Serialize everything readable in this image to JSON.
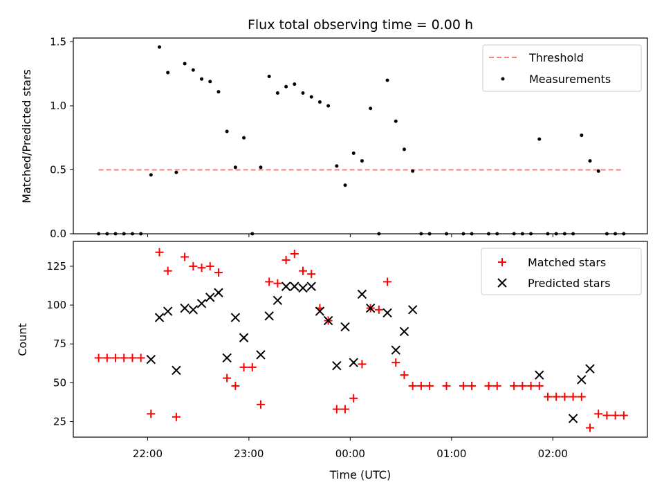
{
  "chart_data": [
    {
      "type": "scatter",
      "title": "Flux total observing time = 0.00 h",
      "xlabel": "",
      "ylabel": "Matched/Predicted stars",
      "xlim": [
        "21:16",
        "02:56"
      ],
      "ylim": [
        0,
        1.53
      ],
      "grid": false,
      "legend_position": "top-right",
      "xticks": [
        "22:00",
        "23:00",
        "00:00",
        "01:00",
        "02:00"
      ],
      "xtick_labels_visible": false,
      "yticks": [
        "0.0",
        "0.5",
        "1.0",
        "1.5"
      ],
      "threshold": {
        "name": "Threshold",
        "value": 0.5,
        "x_start": "21:31",
        "x_end": "02:42",
        "color": "#ff7f7f"
      },
      "series": [
        {
          "name": "Measurements",
          "color": "#000000",
          "x": [
            "21:31",
            "21:36",
            "21:41",
            "21:46",
            "21:51",
            "21:56",
            "22:02",
            "22:07",
            "22:12",
            "22:17",
            "22:22",
            "22:27",
            "22:32",
            "22:37",
            "22:42",
            "22:47",
            "22:52",
            "22:57",
            "23:02",
            "23:07",
            "23:12",
            "23:17",
            "23:22",
            "23:27",
            "23:32",
            "23:37",
            "23:42",
            "23:47",
            "23:52",
            "23:57",
            "00:02",
            "00:07",
            "00:12",
            "00:17",
            "00:22",
            "00:27",
            "00:32",
            "00:37",
            "00:42",
            "00:47",
            "00:57",
            "01:07",
            "01:12",
            "01:22",
            "01:27",
            "01:37",
            "01:42",
            "01:47",
            "01:52",
            "01:57",
            "02:02",
            "02:07",
            "02:12",
            "02:17",
            "02:22",
            "02:27",
            "02:32",
            "02:37",
            "02:42"
          ],
          "y": [
            0,
            0,
            0,
            0,
            0,
            0,
            0.46,
            1.46,
            1.26,
            0.48,
            1.33,
            1.28,
            1.21,
            1.19,
            1.11,
            0.8,
            0.52,
            0.75,
            0,
            0.52,
            1.23,
            1.1,
            1.15,
            1.17,
            1.1,
            1.07,
            1.03,
            1.0,
            0.53,
            0.38,
            0.63,
            0.57,
            0.98,
            0,
            1.2,
            0.88,
            0.66,
            0.49,
            0,
            0,
            0,
            0,
            0,
            0,
            0,
            0,
            0,
            0,
            0.74,
            0,
            0,
            0,
            0,
            0.77,
            0.57,
            0.49,
            0,
            0,
            0
          ]
        }
      ]
    },
    {
      "type": "scatter",
      "title": "",
      "xlabel": "Time (UTC)",
      "ylabel": "Count",
      "xlim": [
        "21:16",
        "02:56"
      ],
      "ylim": [
        15,
        141
      ],
      "grid": false,
      "legend_position": "top-right",
      "xticks": [
        "22:00",
        "23:00",
        "00:00",
        "01:00",
        "02:00"
      ],
      "yticks": [
        "25",
        "50",
        "75",
        "100",
        "125"
      ],
      "series": [
        {
          "name": "Matched stars",
          "marker": "+",
          "color": "#ff0000",
          "x": [
            "21:31",
            "21:36",
            "21:41",
            "21:46",
            "21:51",
            "21:56",
            "22:02",
            "22:07",
            "22:12",
            "22:17",
            "22:22",
            "22:27",
            "22:32",
            "22:37",
            "22:42",
            "22:47",
            "22:52",
            "22:57",
            "23:02",
            "23:07",
            "23:12",
            "23:17",
            "23:22",
            "23:27",
            "23:32",
            "23:37",
            "23:42",
            "23:47",
            "23:52",
            "23:57",
            "00:02",
            "00:07",
            "00:12",
            "00:17",
            "00:22",
            "00:27",
            "00:32",
            "00:37",
            "00:42",
            "00:47",
            "00:57",
            "01:07",
            "01:12",
            "01:22",
            "01:27",
            "01:37",
            "01:42",
            "01:47",
            "01:52",
            "01:57",
            "02:02",
            "02:07",
            "02:12",
            "02:17",
            "02:22",
            "02:27",
            "02:32",
            "02:37",
            "02:42"
          ],
          "y": [
            66,
            66,
            66,
            66,
            66,
            66,
            30,
            134,
            122,
            28,
            131,
            125,
            124,
            125,
            121,
            53,
            48,
            60,
            60,
            36,
            115,
            114,
            129,
            133,
            122,
            120,
            98,
            90,
            33,
            33,
            40,
            62,
            98,
            97,
            115,
            63,
            55,
            48,
            48,
            48,
            48,
            48,
            48,
            48,
            48,
            48,
            48,
            48,
            48,
            41,
            41,
            41,
            41,
            41,
            21,
            30,
            29,
            29,
            29
          ]
        },
        {
          "name": "Predicted stars",
          "marker": "x",
          "color": "#000000",
          "x": [
            "22:02",
            "22:07",
            "22:12",
            "22:17",
            "22:22",
            "22:27",
            "22:32",
            "22:37",
            "22:42",
            "22:47",
            "22:52",
            "22:57",
            "23:07",
            "23:12",
            "23:17",
            "23:22",
            "23:27",
            "23:32",
            "23:37",
            "23:42",
            "23:47",
            "23:52",
            "23:57",
            "00:02",
            "00:07",
            "00:12",
            "00:22",
            "00:27",
            "00:32",
            "00:37",
            "01:52",
            "02:12",
            "02:17",
            "02:22"
          ],
          "y": [
            65,
            92,
            96,
            58,
            98,
            97,
            101,
            105,
            108,
            66,
            92,
            79,
            68,
            93,
            103,
            112,
            112,
            111,
            112,
            96,
            90,
            61,
            86,
            63,
            107,
            98,
            95,
            71,
            83,
            97,
            55,
            27,
            52,
            59
          ]
        }
      ]
    }
  ]
}
